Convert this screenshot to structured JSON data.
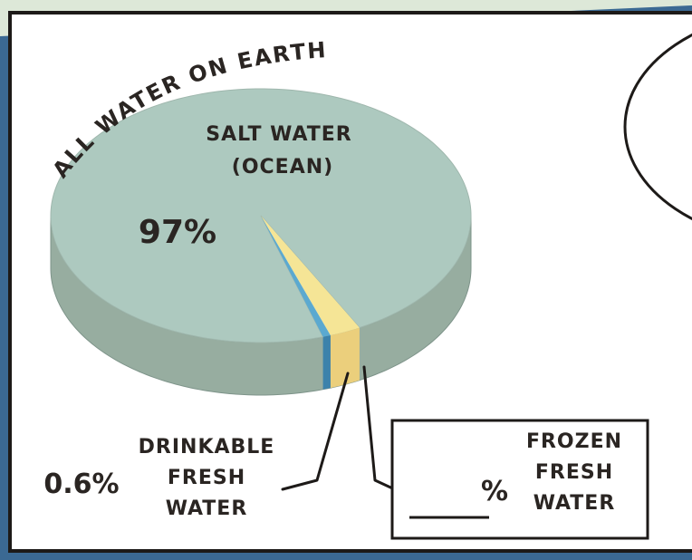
{
  "chart_data": {
    "type": "pie",
    "title": "ALL WATER ON EARTH",
    "categories": [
      [
        "SALT WATER",
        "(OCEAN)"
      ],
      [
        "FROZEN",
        "FRESH",
        "WATER"
      ],
      [
        "DRINKABLE",
        "FRESH",
        "WATER"
      ]
    ],
    "values": [
      97,
      2.4,
      0.6
    ],
    "value_labels": [
      "97%",
      null,
      "0.6%"
    ],
    "blank_label": "%",
    "colors": [
      "#adc9bf",
      "#f5e596",
      "#5ba9d0"
    ],
    "side_colors": [
      "#97ada0",
      "#ebcf7c",
      "#3c82ab"
    ]
  }
}
